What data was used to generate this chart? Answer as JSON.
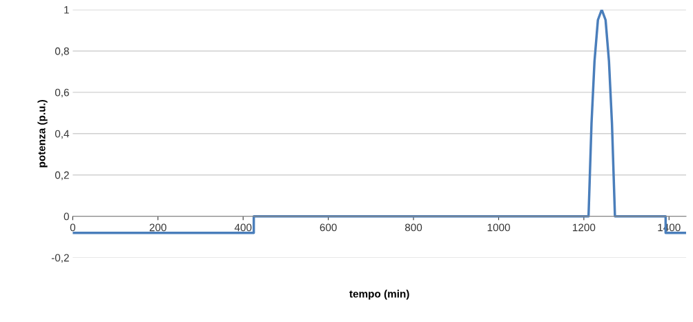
{
  "chart_data": {
    "type": "line",
    "xlabel": "tempo (min)",
    "ylabel": "potenza (p.u.)",
    "xlim": [
      0,
      1440
    ],
    "xticks": [
      0,
      200,
      400,
      600,
      800,
      1000,
      1200,
      1400
    ],
    "ylim": [
      -0.2,
      1
    ],
    "yticks": [
      {
        "value": -0.2,
        "label": "-0,2"
      },
      {
        "value": 0,
        "label": "0"
      },
      {
        "value": 0.2,
        "label": "0,2"
      },
      {
        "value": 0.4,
        "label": "0,4"
      },
      {
        "value": 0.6,
        "label": "0,6"
      },
      {
        "value": 0.8,
        "label": "0,8"
      },
      {
        "value": 1,
        "label": "1"
      }
    ],
    "grid": "y",
    "legend": false,
    "marker": "none",
    "line_style": "solid",
    "series": [
      {
        "color": "#4a7ebb",
        "x": [
          0,
          425,
          425,
          1211,
          1218,
          1225,
          1233,
          1242,
          1251,
          1259,
          1266,
          1273,
          1392,
          1392,
          1440
        ],
        "values": [
          -0.08,
          -0.08,
          0,
          0,
          0.45,
          0.75,
          0.95,
          1,
          0.95,
          0.75,
          0.45,
          0,
          0,
          -0.08,
          -0.08
        ]
      }
    ]
  }
}
